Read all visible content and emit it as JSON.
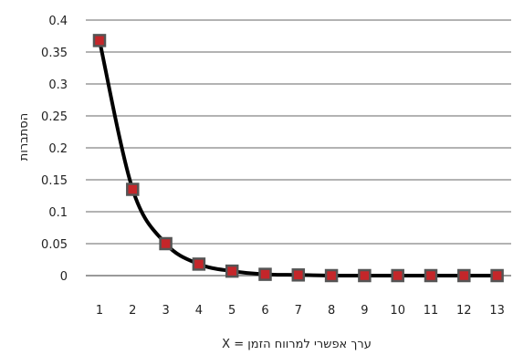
{
  "chart_data": {
    "type": "line",
    "title": "",
    "xlabel": "ערך אפשרי למרווח הזמן = X",
    "ylabel": "הסתברות",
    "x": [
      1,
      2,
      3,
      4,
      5,
      6,
      7,
      8,
      9,
      10,
      11,
      12,
      13
    ],
    "series": [
      {
        "values": [
          0.368,
          0.135,
          0.05,
          0.018,
          0.007,
          0.002,
          0.001,
          0.0,
          0.0,
          0.0,
          0.0,
          0.0,
          0.0
        ]
      }
    ],
    "xticks": [
      "1",
      "2",
      "3",
      "4",
      "5",
      "6",
      "7",
      "8",
      "9",
      "10",
      "11",
      "12",
      "13"
    ],
    "yticks": [
      "0",
      "0.05",
      "0.1",
      "0.15",
      "0.2",
      "0.25",
      "0.3",
      "0.35",
      "0.4"
    ],
    "ylim": [
      0,
      0.4
    ],
    "grid": "horizontal",
    "legend": "none",
    "colors": {
      "line": "#000000",
      "marker_fill": "#c4262a",
      "marker_edge": "#555555",
      "grid": "#9a9a9a"
    }
  }
}
